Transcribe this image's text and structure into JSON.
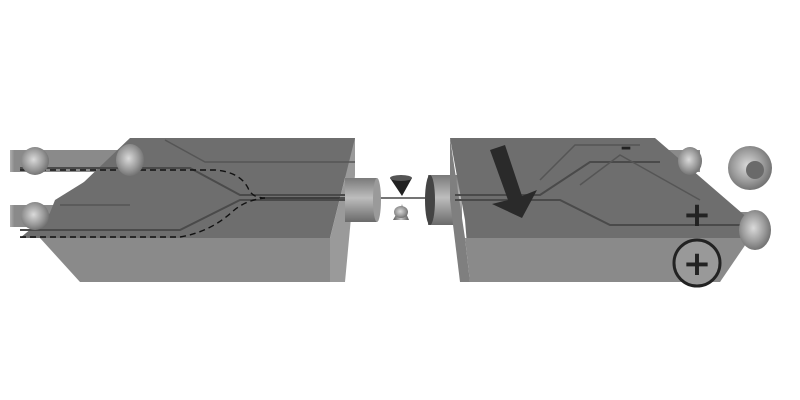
{
  "diagram": {
    "left_block": {
      "tube_count": 2
    },
    "right_block": {
      "minus_symbol": "–",
      "plus_symbol": "+",
      "circled_plus_symbol": "+"
    },
    "icons": [
      "arrow-icon",
      "minus-icon",
      "plus-icon",
      "circled-plus-icon"
    ],
    "colors": {
      "block_top": "#6e6e6e",
      "block_front": "#8a8a8a",
      "block_side": "#9a9a9a",
      "channel": "#4a4a4a",
      "arrow": "#2a2a2a",
      "background": "#ffffff"
    }
  }
}
